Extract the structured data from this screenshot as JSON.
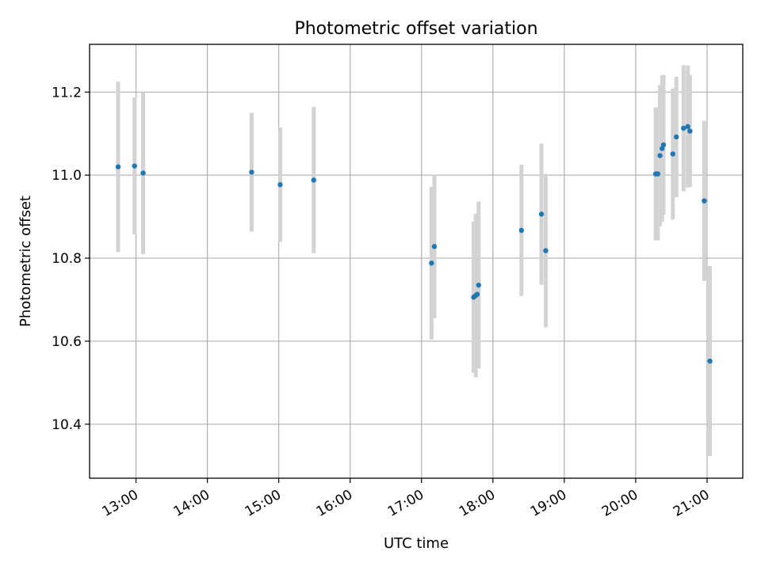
{
  "chart_data": {
    "type": "scatter",
    "title": "Photometric offset variation",
    "xlabel": "UTC time",
    "ylabel": "Photometric offset",
    "x_unit": "hours UTC",
    "xlim": [
      12.35,
      21.5
    ],
    "ylim": [
      10.27,
      11.315
    ],
    "grid": true,
    "x_ticks": [
      {
        "value": 13,
        "label": "13:00"
      },
      {
        "value": 14,
        "label": "14:00"
      },
      {
        "value": 15,
        "label": "15:00"
      },
      {
        "value": 16,
        "label": "16:00"
      },
      {
        "value": 17,
        "label": "17:00"
      },
      {
        "value": 18,
        "label": "18:00"
      },
      {
        "value": 19,
        "label": "19:00"
      },
      {
        "value": 20,
        "label": "20:00"
      },
      {
        "value": 21,
        "label": "21:00"
      }
    ],
    "y_ticks": [
      {
        "value": 10.4,
        "label": "10.4"
      },
      {
        "value": 10.6,
        "label": "10.6"
      },
      {
        "value": 10.8,
        "label": "10.8"
      },
      {
        "value": 11.0,
        "label": "11.0"
      },
      {
        "value": 11.2,
        "label": "11.2"
      }
    ],
    "colors": {
      "marker": "#1f77b4",
      "errorbar": "#d3d3d3",
      "grid": "#b0b0b0"
    },
    "points": [
      {
        "x": 12.75,
        "y": 11.02,
        "yerr": 0.205
      },
      {
        "x": 12.98,
        "y": 11.022,
        "yerr": 0.165
      },
      {
        "x": 13.1,
        "y": 11.005,
        "yerr": 0.195
      },
      {
        "x": 14.62,
        "y": 11.007,
        "yerr": 0.143
      },
      {
        "x": 15.02,
        "y": 10.977,
        "yerr": 0.138
      },
      {
        "x": 15.49,
        "y": 10.988,
        "yerr": 0.176
      },
      {
        "x": 17.14,
        "y": 10.788,
        "yerr": 0.184
      },
      {
        "x": 17.18,
        "y": 10.828,
        "yerr": 0.173
      },
      {
        "x": 17.73,
        "y": 10.706,
        "yerr": 0.182
      },
      {
        "x": 17.76,
        "y": 10.71,
        "yerr": 0.197
      },
      {
        "x": 17.78,
        "y": 10.713,
        "yerr": 0.178
      },
      {
        "x": 17.8,
        "y": 10.735,
        "yerr": 0.201
      },
      {
        "x": 18.4,
        "y": 10.867,
        "yerr": 0.158
      },
      {
        "x": 18.68,
        "y": 10.906,
        "yerr": 0.17
      },
      {
        "x": 18.74,
        "y": 10.818,
        "yerr": 0.185
      },
      {
        "x": 20.28,
        "y": 11.003,
        "yerr": 0.16
      },
      {
        "x": 20.31,
        "y": 11.003,
        "yerr": 0.16
      },
      {
        "x": 20.34,
        "y": 11.047,
        "yerr": 0.17
      },
      {
        "x": 20.37,
        "y": 11.064,
        "yerr": 0.176
      },
      {
        "x": 20.39,
        "y": 11.073,
        "yerr": 0.168
      },
      {
        "x": 20.52,
        "y": 11.051,
        "yerr": 0.158
      },
      {
        "x": 20.57,
        "y": 11.092,
        "yerr": 0.145
      },
      {
        "x": 20.67,
        "y": 11.113,
        "yerr": 0.152
      },
      {
        "x": 20.73,
        "y": 11.117,
        "yerr": 0.147
      },
      {
        "x": 20.76,
        "y": 11.106,
        "yerr": 0.135
      },
      {
        "x": 20.96,
        "y": 10.938,
        "yerr": 0.193
      },
      {
        "x": 21.04,
        "y": 10.552,
        "yerr": 0.229
      }
    ]
  }
}
